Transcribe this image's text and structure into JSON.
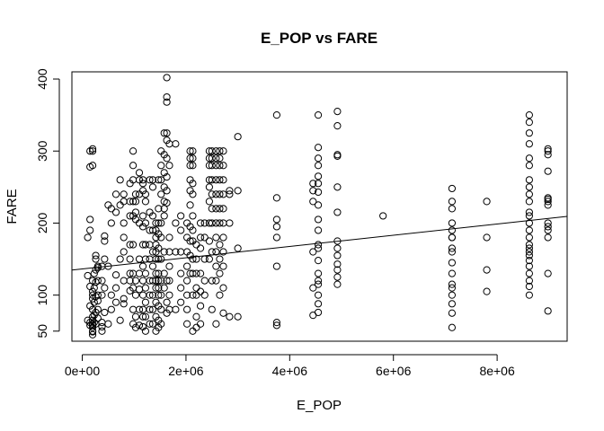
{
  "chart_data": {
    "type": "scatter",
    "title": "E_POP vs FARE",
    "xlabel": "E_POP",
    "ylabel": "FARE",
    "xlim": [
      -200000,
      9350000
    ],
    "ylim": [
      36,
      410
    ],
    "x_ticks": [
      0,
      2000000,
      4000000,
      6000000,
      8000000
    ],
    "x_tick_labels": [
      "0e+00",
      "2e+06",
      "4e+06",
      "6e+06",
      "8e+06"
    ],
    "y_ticks": [
      50,
      100,
      200,
      300,
      400
    ],
    "y_tick_labels": [
      "50",
      "100",
      "200",
      "300",
      "400"
    ],
    "grid": false,
    "legend": "none",
    "regression_line": {
      "intercept": 136.3,
      "slope": 7.8e-06
    },
    "point_color": "#000000",
    "x": [
      105000,
      105000,
      105000,
      150000,
      150000,
      150000,
      150000,
      150000,
      150000,
      150000,
      150000,
      200000,
      200000,
      200000,
      200000,
      200000,
      200000,
      200000,
      200000,
      200000,
      200000,
      200000,
      200000,
      200000,
      200000,
      200000,
      200000,
      230000,
      230000,
      230000,
      230000,
      230000,
      260000,
      260000,
      260000,
      260000,
      260000,
      260000,
      260000,
      300000,
      300000,
      300000,
      300000,
      300000,
      300000,
      300000,
      380000,
      380000,
      380000,
      380000,
      380000,
      380000,
      430000,
      430000,
      430000,
      430000,
      430000,
      500000,
      500000,
      500000,
      560000,
      560000,
      560000,
      560000,
      650000,
      650000,
      650000,
      650000,
      650000,
      730000,
      730000,
      730000,
      730000,
      800000,
      800000,
      800000,
      800000,
      800000,
      800000,
      800000,
      800000,
      920000,
      920000,
      920000,
      920000,
      920000,
      920000,
      920000,
      920000,
      980000,
      980000,
      980000,
      980000,
      980000,
      980000,
      980000,
      980000,
      980000,
      980000,
      1030000,
      1030000,
      1030000,
      1030000,
      1030000,
      1030000,
      1030000,
      1030000,
      1100000,
      1100000,
      1100000,
      1100000,
      1100000,
      1100000,
      1100000,
      1100000,
      1100000,
      1170000,
      1170000,
      1170000,
      1170000,
      1170000,
      1170000,
      1170000,
      1170000,
      1170000,
      1170000,
      1170000,
      1170000,
      1220000,
      1220000,
      1220000,
      1220000,
      1220000,
      1220000,
      1220000,
      1220000,
      1220000,
      1220000,
      1300000,
      1300000,
      1300000,
      1300000,
      1300000,
      1300000,
      1300000,
      1300000,
      1300000,
      1360000,
      1360000,
      1360000,
      1360000,
      1360000,
      1360000,
      1360000,
      1360000,
      1360000,
      1360000,
      1420000,
      1420000,
      1420000,
      1420000,
      1420000,
      1420000,
      1420000,
      1420000,
      1420000,
      1420000,
      1420000,
      1420000,
      1470000,
      1470000,
      1470000,
      1470000,
      1470000,
      1470000,
      1470000,
      1470000,
      1470000,
      1470000,
      1470000,
      1470000,
      1470000,
      1520000,
      1520000,
      1520000,
      1520000,
      1520000,
      1520000,
      1520000,
      1520000,
      1520000,
      1520000,
      1520000,
      1580000,
      1580000,
      1580000,
      1580000,
      1580000,
      1580000,
      1580000,
      1580000,
      1580000,
      1580000,
      1630000,
      1630000,
      1630000,
      1630000,
      1630000,
      1630000,
      1630000,
      1630000,
      1630000,
      1630000,
      1630000,
      1630000,
      1680000,
      1680000,
      1680000,
      1680000,
      1680000,
      1680000,
      1680000,
      1680000,
      1800000,
      1800000,
      1800000,
      1800000,
      1900000,
      1900000,
      1900000,
      1900000,
      1900000,
      1900000,
      2020000,
      2020000,
      2020000,
      2020000,
      2020000,
      2020000,
      2020000,
      2020000,
      2080000,
      2080000,
      2080000,
      2080000,
      2080000,
      2080000,
      2080000,
      2080000,
      2080000,
      2080000,
      2130000,
      2130000,
      2130000,
      2130000,
      2130000,
      2130000,
      2130000,
      2130000,
      2130000,
      2130000,
      2130000,
      2130000,
      2200000,
      2200000,
      2200000,
      2200000,
      2200000,
      2200000,
      2200000,
      2280000,
      2280000,
      2280000,
      2280000,
      2280000,
      2280000,
      2280000,
      2360000,
      2360000,
      2360000,
      2360000,
      2360000,
      2450000,
      2450000,
      2450000,
      2450000,
      2450000,
      2450000,
      2450000,
      2450000,
      2450000,
      2500000,
      2500000,
      2500000,
      2500000,
      2500000,
      2500000,
      2500000,
      2500000,
      2500000,
      2500000,
      2580000,
      2580000,
      2580000,
      2580000,
      2580000,
      2580000,
      2580000,
      2580000,
      2580000,
      2580000,
      2580000,
      2580000,
      2650000,
      2650000,
      2650000,
      2650000,
      2650000,
      2650000,
      2650000,
      2650000,
      2650000,
      2650000,
      2650000,
      2720000,
      2720000,
      2720000,
      2720000,
      2720000,
      2720000,
      2720000,
      2720000,
      2720000,
      2720000,
      2720000,
      2840000,
      2840000,
      2840000,
      2840000,
      3000000,
      3000000,
      3000000,
      3000000,
      3750000,
      3750000,
      3750000,
      3750000,
      3750000,
      3750000,
      3750000,
      3750000,
      4450000,
      4450000,
      4450000,
      4450000,
      4450000,
      4450000,
      4550000,
      4550000,
      4550000,
      4550000,
      4550000,
      4550000,
      4550000,
      4550000,
      4550000,
      4550000,
      4550000,
      4550000,
      4550000,
      4550000,
      4550000,
      4550000,
      4550000,
      4550000,
      4550000,
      4920000,
      4920000,
      4920000,
      4920000,
      4920000,
      4920000,
      4920000,
      4920000,
      4920000,
      4920000,
      4920000,
      4920000,
      4920000,
      5800000,
      7130000,
      7130000,
      7130000,
      7130000,
      7130000,
      7130000,
      7130000,
      7130000,
      7130000,
      7130000,
      7130000,
      7130000,
      7130000,
      7130000,
      7130000,
      7130000,
      7130000,
      7800000,
      7800000,
      7800000,
      7800000,
      8620000,
      8620000,
      8620000,
      8620000,
      8620000,
      8620000,
      8620000,
      8620000,
      8620000,
      8620000,
      8620000,
      8620000,
      8620000,
      8620000,
      8620000,
      8620000,
      8620000,
      8620000,
      8620000,
      8620000,
      8620000,
      8620000,
      8620000,
      8620000,
      8620000,
      8980000,
      8980000,
      8980000,
      8980000,
      8980000,
      8980000,
      8980000,
      8980000,
      8980000,
      8980000,
      8980000,
      8980000,
      8980000,
      8980000
    ],
    "y": [
      180,
      127,
      65,
      190,
      205,
      300,
      278,
      62,
      58,
      112,
      85,
      303,
      300,
      280,
      60,
      55,
      45,
      50,
      65,
      70,
      95,
      105,
      120,
      80,
      58,
      49,
      100,
      130,
      110,
      90,
      72,
      62,
      135,
      155,
      150,
      118,
      98,
      76,
      60,
      140,
      138,
      120,
      100,
      92,
      80,
      68,
      120,
      100,
      62,
      56,
      50,
      140,
      182,
      175,
      150,
      110,
      76,
      225,
      140,
      60,
      220,
      200,
      100,
      80,
      215,
      240,
      128,
      110,
      90,
      260,
      225,
      65,
      150,
      230,
      240,
      200,
      180,
      160,
      120,
      95,
      88,
      255,
      230,
      210,
      170,
      150,
      130,
      120,
      106,
      300,
      280,
      260,
      230,
      210,
      170,
      130,
      110,
      80,
      60,
      240,
      230,
      215,
      205,
      120,
      100,
      70,
      55,
      270,
      260,
      240,
      200,
      150,
      130,
      108,
      80,
      58,
      260,
      255,
      245,
      210,
      195,
      170,
      140,
      120,
      100,
      80,
      70,
      56,
      240,
      230,
      200,
      170,
      150,
      130,
      110,
      90,
      70,
      50,
      260,
      215,
      190,
      170,
      150,
      120,
      100,
      80,
      60,
      260,
      250,
      210,
      190,
      160,
      140,
      120,
      100,
      80,
      60,
      200,
      190,
      180,
      170,
      160,
      150,
      130,
      120,
      110,
      90,
      70,
      50,
      260,
      220,
      200,
      185,
      165,
      150,
      130,
      120,
      110,
      100,
      85,
      65,
      55,
      300,
      280,
      260,
      240,
      200,
      180,
      150,
      120,
      100,
      80,
      60,
      325,
      295,
      270,
      250,
      230,
      220,
      210,
      160,
      130,
      110,
      402,
      375,
      368,
      325,
      315,
      290,
      264,
      245,
      228,
      120,
      90,
      75,
      310,
      280,
      180,
      160,
      140,
      120,
      100,
      80,
      310,
      200,
      160,
      80,
      210,
      190,
      160,
      130,
      110,
      90,
      200,
      180,
      160,
      140,
      120,
      100,
      80,
      60,
      300,
      290,
      280,
      260,
      245,
      225,
      195,
      175,
      155,
      130,
      300,
      290,
      280,
      255,
      240,
      210,
      190,
      175,
      150,
      130,
      100,
      50,
      170,
      150,
      130,
      110,
      100,
      70,
      55,
      200,
      180,
      165,
      130,
      105,
      85,
      60,
      200,
      180,
      150,
      120,
      100,
      300,
      290,
      280,
      260,
      250,
      230,
      200,
      175,
      150,
      300,
      290,
      280,
      260,
      240,
      220,
      200,
      160,
      120,
      80,
      300,
      290,
      280,
      260,
      240,
      220,
      200,
      180,
      160,
      140,
      120,
      60,
      300,
      290,
      280,
      260,
      240,
      220,
      200,
      170,
      150,
      130,
      100,
      300,
      280,
      260,
      240,
      220,
      200,
      180,
      160,
      140,
      110,
      75,
      245,
      240,
      200,
      70,
      320,
      245,
      165,
      70,
      350,
      235,
      205,
      195,
      180,
      140,
      62,
      58,
      255,
      245,
      230,
      160,
      110,
      72,
      350,
      305,
      290,
      280,
      265,
      255,
      243,
      225,
      205,
      190,
      170,
      165,
      148,
      130,
      120,
      115,
      100,
      88,
      76,
      355,
      335,
      295,
      293,
      250,
      215,
      175,
      165,
      155,
      143,
      135,
      125,
      115,
      210,
      248,
      230,
      220,
      200,
      190,
      180,
      165,
      145,
      130,
      115,
      110,
      100,
      88,
      75,
      55,
      160,
      180,
      230,
      180,
      135,
      105,
      350,
      340,
      325,
      310,
      290,
      280,
      260,
      250,
      240,
      230,
      215,
      210,
      200,
      190,
      180,
      170,
      165,
      160,
      155,
      148,
      140,
      130,
      120,
      112,
      100,
      303,
      295,
      272,
      235,
      233,
      225,
      200,
      195,
      180,
      130,
      78,
      300,
      190,
      230
    ]
  }
}
